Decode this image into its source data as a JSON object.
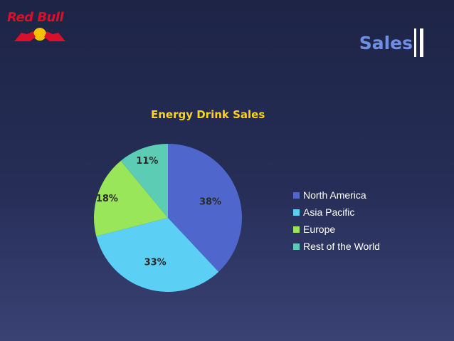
{
  "slide": {
    "title": "Sales"
  },
  "logo": {
    "text": "Red Bull"
  },
  "colors": {
    "north_america": "#4f66cc",
    "asia_pacific": "#5ccff4",
    "europe": "#9ae65a",
    "rest_of_world": "#5ccdb4",
    "title": "#ffd21e"
  },
  "chart_data": {
    "type": "pie",
    "title": "Energy Drink Sales",
    "legend_position": "right",
    "slices": [
      {
        "name": "North America",
        "value": 38,
        "label": "38%",
        "color": "#4f66cc"
      },
      {
        "name": "Asia Pacific",
        "value": 33,
        "label": "33%",
        "color": "#5ccff4"
      },
      {
        "name": "Europe",
        "value": 18,
        "label": "18%",
        "color": "#9ae65a"
      },
      {
        "name": "Rest of the World",
        "value": 11,
        "label": "11%",
        "color": "#5ccdb4"
      }
    ]
  }
}
